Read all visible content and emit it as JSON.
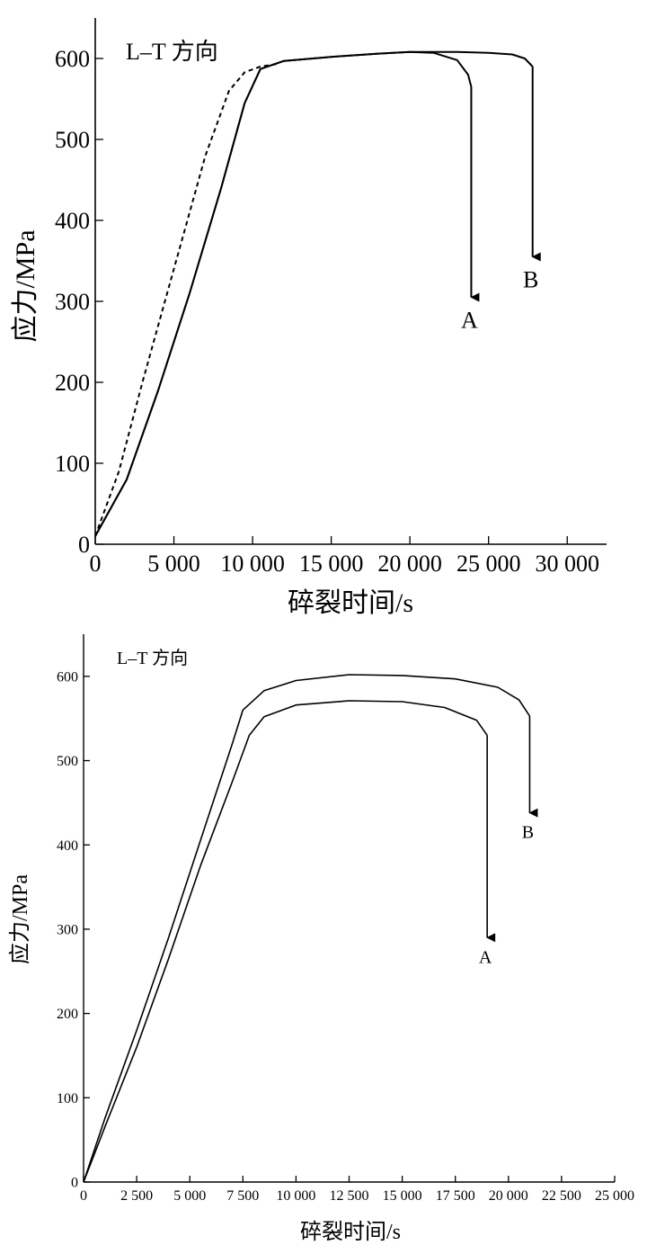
{
  "chart_data": [
    {
      "type": "line",
      "annotation": "L–T 方向",
      "xlabel": "碎裂时间/s",
      "ylabel": "应力/MPa",
      "xlim": [
        0,
        32500
      ],
      "ylim": [
        0,
        650
      ],
      "xticks": [
        0,
        5000,
        10000,
        15000,
        20000,
        25000,
        30000
      ],
      "xtick_labels": [
        "0",
        "5 000",
        "10 000",
        "15 000",
        "20 000",
        "25 000",
        "30 000"
      ],
      "yticks": [
        0,
        100,
        200,
        300,
        400,
        500,
        600
      ],
      "ytick_labels": [
        "0",
        "100",
        "200",
        "300",
        "400",
        "500",
        "600"
      ],
      "grid": false,
      "series": [
        {
          "name": "A",
          "style": "solid",
          "x": [
            0,
            2000,
            4000,
            6000,
            8000,
            9500,
            10500,
            12000,
            15000,
            18000,
            20000,
            21500,
            23000,
            23700,
            23900
          ],
          "y": [
            10,
            80,
            190,
            310,
            440,
            545,
            587,
            597,
            602,
            606,
            608,
            607,
            598,
            580,
            565
          ],
          "drop_to": 305
        },
        {
          "name": "B",
          "style": "solid",
          "x": [
            0,
            2000,
            4000,
            6000,
            8000,
            9500,
            10500,
            12000,
            15000,
            18000,
            20000,
            23000,
            25000,
            26500,
            27300,
            27800
          ],
          "y": [
            10,
            80,
            190,
            310,
            440,
            545,
            587,
            597,
            602,
            606,
            608,
            608,
            607,
            605,
            600,
            590
          ],
          "drop_to": 355
        },
        {
          "name": "",
          "style": "dashed",
          "x": [
            0,
            1500,
            3000,
            5000,
            7000,
            8500,
            9500,
            10500,
            11500
          ],
          "y": [
            10,
            90,
            200,
            340,
            480,
            560,
            583,
            590,
            593
          ]
        }
      ],
      "arrow_labels": [
        "A",
        "B"
      ]
    },
    {
      "type": "line",
      "annotation": "L–T 方向",
      "xlabel": "碎裂时间/s",
      "ylabel": "应力/MPa",
      "xlim": [
        0,
        25000
      ],
      "ylim": [
        0,
        650
      ],
      "xticks": [
        0,
        2500,
        5000,
        7500,
        10000,
        12500,
        15000,
        17500,
        20000,
        22500,
        25000
      ],
      "xtick_labels": [
        "0",
        "2 500",
        "5 000",
        "7 500",
        "10 000",
        "12 500",
        "15 000",
        "17 500",
        "20 000",
        "22 500",
        "25 000"
      ],
      "yticks": [
        0,
        100,
        200,
        300,
        400,
        500,
        600
      ],
      "ytick_labels": [
        "0",
        "100",
        "200",
        "300",
        "400",
        "500",
        "600"
      ],
      "grid": false,
      "series": [
        {
          "name": "A",
          "style": "solid",
          "x": [
            0,
            1000,
            2500,
            4000,
            5500,
            7000,
            7800,
            8500,
            10000,
            12500,
            15000,
            17000,
            18500,
            19000
          ],
          "y": [
            0,
            65,
            160,
            265,
            375,
            475,
            530,
            552,
            566,
            571,
            570,
            563,
            548,
            530
          ],
          "drop_to": 290
        },
        {
          "name": "B",
          "style": "solid",
          "x": [
            0,
            1000,
            2500,
            4000,
            5500,
            7000,
            7500,
            8500,
            10000,
            12500,
            15000,
            17500,
            19500,
            20500,
            21000
          ],
          "y": [
            0,
            75,
            180,
            290,
            405,
            520,
            560,
            583,
            595,
            602,
            601,
            597,
            587,
            572,
            553
          ],
          "drop_to": 438
        }
      ],
      "arrow_labels": [
        "A",
        "B"
      ]
    }
  ]
}
